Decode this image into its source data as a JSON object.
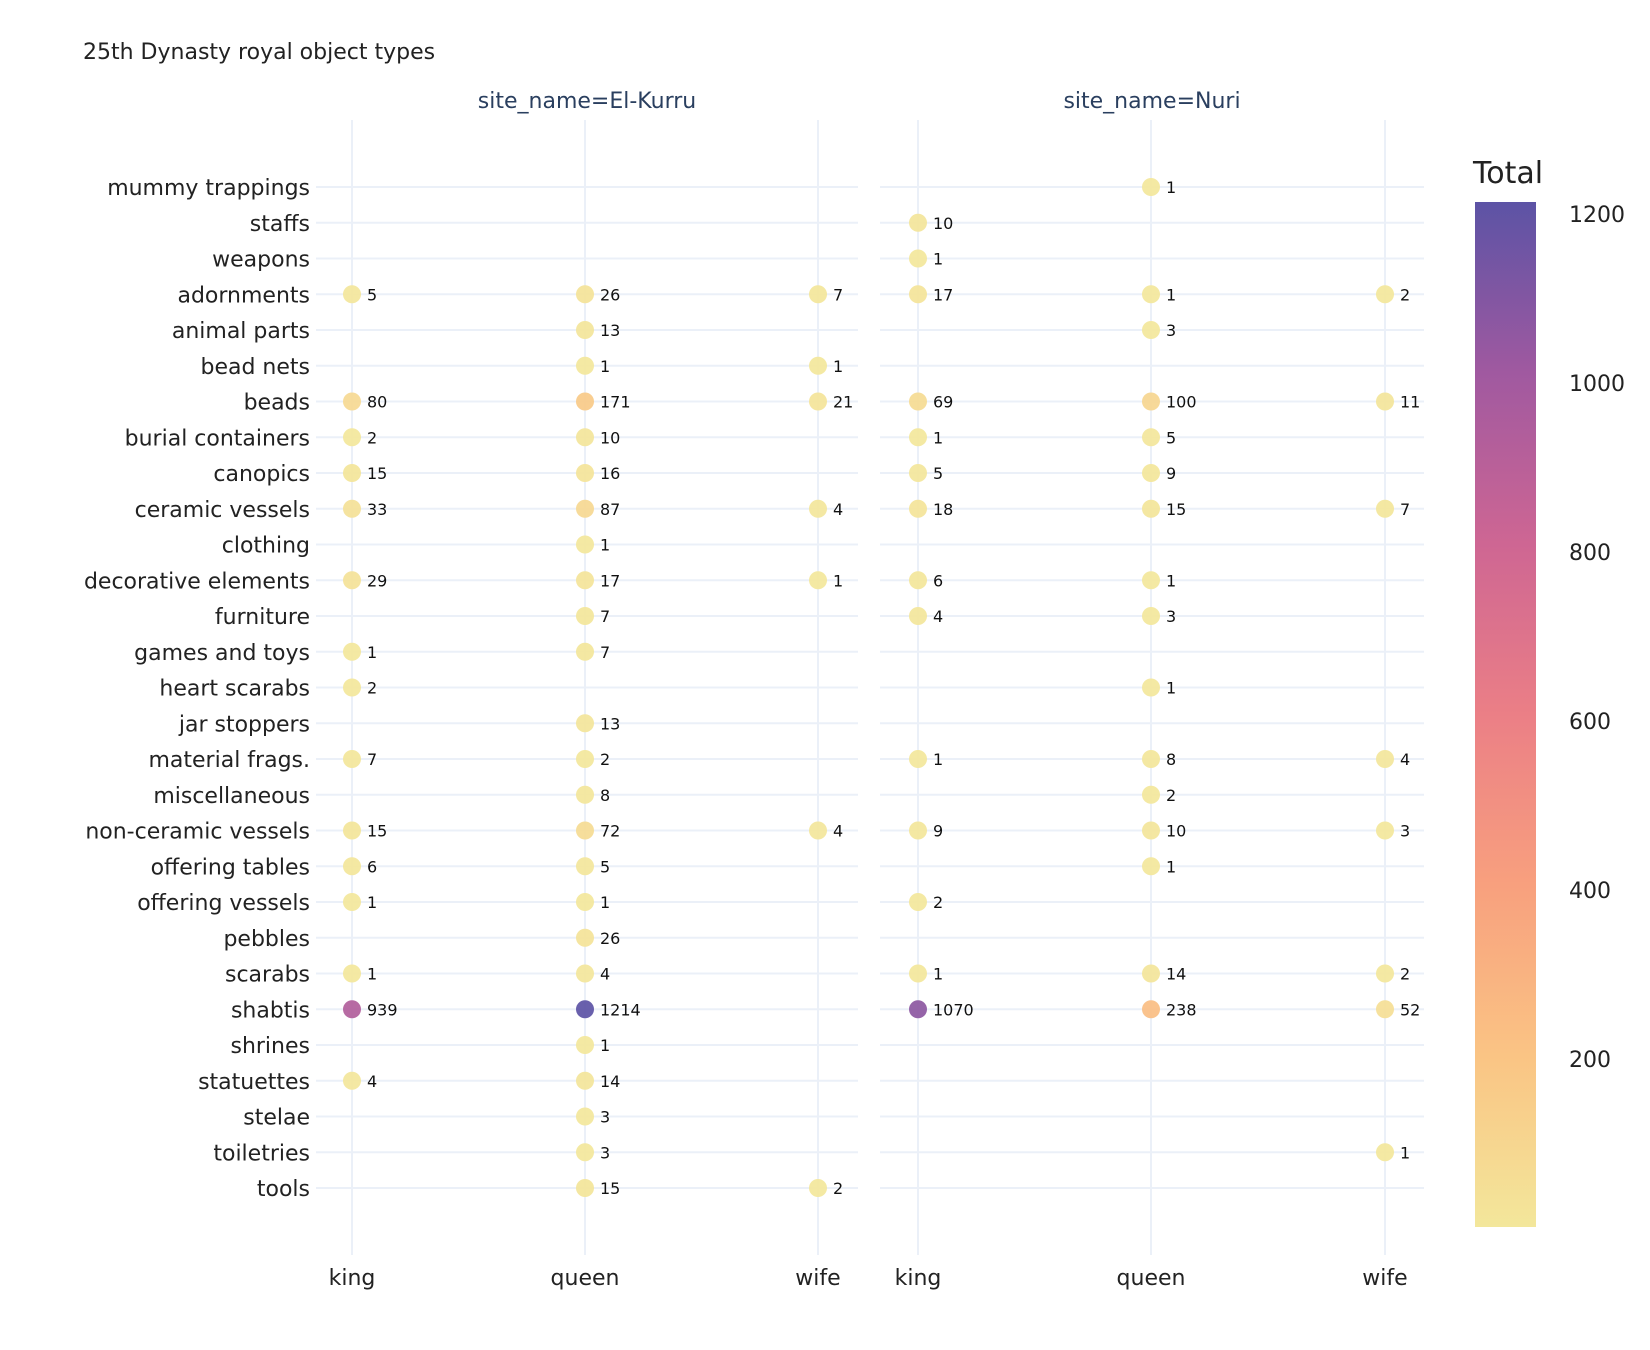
{
  "chart_data": {
    "type": "scatter",
    "title": "25th Dynasty royal object types",
    "facets": [
      "site_name=El-Kurru",
      "site_name=Nuri"
    ],
    "x_categories": [
      "king",
      "queen",
      "wife"
    ],
    "y_categories": [
      "mummy trappings",
      "staffs",
      "weapons",
      "adornments",
      "animal parts",
      "bead nets",
      "beads",
      "burial containers",
      "canopics",
      "ceramic vessels",
      "clothing",
      "decorative elements",
      "furniture",
      "games and toys",
      "heart scarabs",
      "jar stoppers",
      "material frags.",
      "miscellaneous",
      "non-ceramic vessels",
      "offering tables",
      "offering vessels",
      "pebbles",
      "scarabs",
      "shabtis",
      "shrines",
      "statuettes",
      "stelae",
      "toiletries",
      "tools"
    ],
    "colorbar": {
      "title": "Total",
      "min": 1,
      "max": 1214,
      "ticks": [
        200,
        400,
        600,
        800,
        1000,
        1200
      ]
    },
    "points": [
      {
        "facet": 0,
        "x": "king",
        "y": "adornments",
        "value": 5
      },
      {
        "facet": 0,
        "x": "queen",
        "y": "adornments",
        "value": 26
      },
      {
        "facet": 0,
        "x": "wife",
        "y": "adornments",
        "value": 7
      },
      {
        "facet": 0,
        "x": "queen",
        "y": "animal parts",
        "value": 13
      },
      {
        "facet": 0,
        "x": "queen",
        "y": "bead nets",
        "value": 1
      },
      {
        "facet": 0,
        "x": "wife",
        "y": "bead nets",
        "value": 1
      },
      {
        "facet": 0,
        "x": "king",
        "y": "beads",
        "value": 80
      },
      {
        "facet": 0,
        "x": "queen",
        "y": "beads",
        "value": 171
      },
      {
        "facet": 0,
        "x": "wife",
        "y": "beads",
        "value": 21
      },
      {
        "facet": 0,
        "x": "king",
        "y": "burial containers",
        "value": 2
      },
      {
        "facet": 0,
        "x": "queen",
        "y": "burial containers",
        "value": 10
      },
      {
        "facet": 0,
        "x": "king",
        "y": "canopics",
        "value": 15
      },
      {
        "facet": 0,
        "x": "queen",
        "y": "canopics",
        "value": 16
      },
      {
        "facet": 0,
        "x": "king",
        "y": "ceramic vessels",
        "value": 33
      },
      {
        "facet": 0,
        "x": "queen",
        "y": "ceramic vessels",
        "value": 87
      },
      {
        "facet": 0,
        "x": "wife",
        "y": "ceramic vessels",
        "value": 4
      },
      {
        "facet": 0,
        "x": "queen",
        "y": "clothing",
        "value": 1
      },
      {
        "facet": 0,
        "x": "king",
        "y": "decorative elements",
        "value": 29
      },
      {
        "facet": 0,
        "x": "queen",
        "y": "decorative elements",
        "value": 17
      },
      {
        "facet": 0,
        "x": "wife",
        "y": "decorative elements",
        "value": 1
      },
      {
        "facet": 0,
        "x": "queen",
        "y": "furniture",
        "value": 7
      },
      {
        "facet": 0,
        "x": "king",
        "y": "games and toys",
        "value": 1
      },
      {
        "facet": 0,
        "x": "queen",
        "y": "games and toys",
        "value": 7
      },
      {
        "facet": 0,
        "x": "king",
        "y": "heart scarabs",
        "value": 2
      },
      {
        "facet": 0,
        "x": "queen",
        "y": "jar stoppers",
        "value": 13
      },
      {
        "facet": 0,
        "x": "king",
        "y": "material frags.",
        "value": 7
      },
      {
        "facet": 0,
        "x": "queen",
        "y": "material frags.",
        "value": 2
      },
      {
        "facet": 0,
        "x": "queen",
        "y": "miscellaneous",
        "value": 8
      },
      {
        "facet": 0,
        "x": "king",
        "y": "non-ceramic vessels",
        "value": 15
      },
      {
        "facet": 0,
        "x": "queen",
        "y": "non-ceramic vessels",
        "value": 72
      },
      {
        "facet": 0,
        "x": "wife",
        "y": "non-ceramic vessels",
        "value": 4
      },
      {
        "facet": 0,
        "x": "king",
        "y": "offering tables",
        "value": 6
      },
      {
        "facet": 0,
        "x": "queen",
        "y": "offering tables",
        "value": 5
      },
      {
        "facet": 0,
        "x": "king",
        "y": "offering vessels",
        "value": 1
      },
      {
        "facet": 0,
        "x": "queen",
        "y": "offering vessels",
        "value": 1
      },
      {
        "facet": 0,
        "x": "queen",
        "y": "pebbles",
        "value": 26
      },
      {
        "facet": 0,
        "x": "king",
        "y": "scarabs",
        "value": 1
      },
      {
        "facet": 0,
        "x": "queen",
        "y": "scarabs",
        "value": 4
      },
      {
        "facet": 0,
        "x": "king",
        "y": "shabtis",
        "value": 939
      },
      {
        "facet": 0,
        "x": "queen",
        "y": "shabtis",
        "value": 1214
      },
      {
        "facet": 0,
        "x": "queen",
        "y": "shrines",
        "value": 1
      },
      {
        "facet": 0,
        "x": "king",
        "y": "statuettes",
        "value": 4
      },
      {
        "facet": 0,
        "x": "queen",
        "y": "statuettes",
        "value": 14
      },
      {
        "facet": 0,
        "x": "queen",
        "y": "stelae",
        "value": 3
      },
      {
        "facet": 0,
        "x": "queen",
        "y": "toiletries",
        "value": 3
      },
      {
        "facet": 0,
        "x": "queen",
        "y": "tools",
        "value": 15
      },
      {
        "facet": 0,
        "x": "wife",
        "y": "tools",
        "value": 2
      },
      {
        "facet": 1,
        "x": "queen",
        "y": "mummy trappings",
        "value": 1
      },
      {
        "facet": 1,
        "x": "king",
        "y": "staffs",
        "value": 10
      },
      {
        "facet": 1,
        "x": "king",
        "y": "weapons",
        "value": 1
      },
      {
        "facet": 1,
        "x": "king",
        "y": "adornments",
        "value": 17
      },
      {
        "facet": 1,
        "x": "queen",
        "y": "adornments",
        "value": 1
      },
      {
        "facet": 1,
        "x": "wife",
        "y": "adornments",
        "value": 2
      },
      {
        "facet": 1,
        "x": "queen",
        "y": "animal parts",
        "value": 3
      },
      {
        "facet": 1,
        "x": "king",
        "y": "beads",
        "value": 69
      },
      {
        "facet": 1,
        "x": "queen",
        "y": "beads",
        "value": 100
      },
      {
        "facet": 1,
        "x": "wife",
        "y": "beads",
        "value": 11
      },
      {
        "facet": 1,
        "x": "king",
        "y": "burial containers",
        "value": 1
      },
      {
        "facet": 1,
        "x": "queen",
        "y": "burial containers",
        "value": 5
      },
      {
        "facet": 1,
        "x": "king",
        "y": "canopics",
        "value": 5
      },
      {
        "facet": 1,
        "x": "queen",
        "y": "canopics",
        "value": 9
      },
      {
        "facet": 1,
        "x": "king",
        "y": "ceramic vessels",
        "value": 18
      },
      {
        "facet": 1,
        "x": "queen",
        "y": "ceramic vessels",
        "value": 15
      },
      {
        "facet": 1,
        "x": "wife",
        "y": "ceramic vessels",
        "value": 7
      },
      {
        "facet": 1,
        "x": "king",
        "y": "decorative elements",
        "value": 6
      },
      {
        "facet": 1,
        "x": "queen",
        "y": "decorative elements",
        "value": 1
      },
      {
        "facet": 1,
        "x": "king",
        "y": "furniture",
        "value": 4
      },
      {
        "facet": 1,
        "x": "queen",
        "y": "furniture",
        "value": 3
      },
      {
        "facet": 1,
        "x": "queen",
        "y": "heart scarabs",
        "value": 1
      },
      {
        "facet": 1,
        "x": "king",
        "y": "material frags.",
        "value": 1
      },
      {
        "facet": 1,
        "x": "queen",
        "y": "material frags.",
        "value": 8
      },
      {
        "facet": 1,
        "x": "wife",
        "y": "material frags.",
        "value": 4
      },
      {
        "facet": 1,
        "x": "queen",
        "y": "miscellaneous",
        "value": 2
      },
      {
        "facet": 1,
        "x": "king",
        "y": "non-ceramic vessels",
        "value": 9
      },
      {
        "facet": 1,
        "x": "queen",
        "y": "non-ceramic vessels",
        "value": 10
      },
      {
        "facet": 1,
        "x": "wife",
        "y": "non-ceramic vessels",
        "value": 3
      },
      {
        "facet": 1,
        "x": "queen",
        "y": "offering tables",
        "value": 1
      },
      {
        "facet": 1,
        "x": "king",
        "y": "offering vessels",
        "value": 2
      },
      {
        "facet": 1,
        "x": "king",
        "y": "scarabs",
        "value": 1
      },
      {
        "facet": 1,
        "x": "queen",
        "y": "scarabs",
        "value": 14
      },
      {
        "facet": 1,
        "x": "wife",
        "y": "scarabs",
        "value": 2
      },
      {
        "facet": 1,
        "x": "king",
        "y": "shabtis",
        "value": 1070
      },
      {
        "facet": 1,
        "x": "queen",
        "y": "shabtis",
        "value": 238
      },
      {
        "facet": 1,
        "x": "wife",
        "y": "shabtis",
        "value": 52
      },
      {
        "facet": 1,
        "x": "wife",
        "y": "toiletries",
        "value": 1
      }
    ]
  }
}
